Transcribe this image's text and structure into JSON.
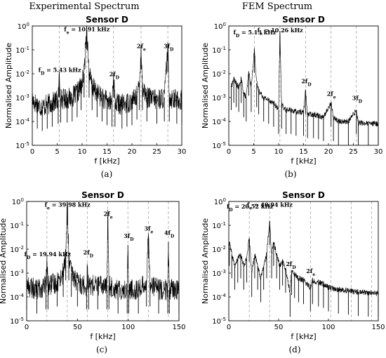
{
  "column_titles": [
    "Experimental Spectrum",
    "FEM Spectrum"
  ],
  "panel_captions": [
    "(a)",
    "(b)",
    "(c)",
    "(d)"
  ],
  "chart_data": [
    {
      "type": "line",
      "title": "Sensor D",
      "xlabel": "f [kHz]",
      "ylabel": "Normalised Amplitude",
      "xlim": [
        0,
        30
      ],
      "ylim": [
        1e-05,
        1
      ],
      "y_scale": "log",
      "x_ticks": [
        "0",
        "5",
        "10",
        "15",
        "20",
        "25",
        "30"
      ],
      "y_ticks": [
        "10-5",
        "10-4",
        "10-3",
        "10-2",
        "10-1",
        "100"
      ],
      "grid": "vertical dashed lines at marked frequencies",
      "marked_frequencies": [
        5.43,
        10.91,
        16.3,
        21.82,
        27.2
      ],
      "annotations": [
        {
          "text": "fD = 5.43 kHz",
          "x": 5.43,
          "y": 0.012
        },
        {
          "text": "fe = 10.91 kHz",
          "x": 10.91,
          "y": 0.6
        },
        {
          "text": "2fD",
          "x": 16.3,
          "y": 0.008
        },
        {
          "text": "2fe",
          "x": 21.82,
          "y": 0.12
        },
        {
          "text": "3fD",
          "x": 27.2,
          "y": 0.12
        }
      ],
      "series": [
        {
          "values": [
            [
              0.0,
              0.0008
            ],
            [
              1.0,
              0.0005
            ],
            [
              2.0,
              0.0004
            ],
            [
              3.0,
              0.0005
            ],
            [
              4.0,
              0.0006
            ],
            [
              5.2,
              0.0008
            ],
            [
              5.43,
              0.01
            ],
            [
              5.7,
              0.0009
            ],
            [
              7.0,
              0.0009
            ],
            [
              8.0,
              0.001
            ],
            [
              9.0,
              0.0015
            ],
            [
              9.8,
              0.003
            ],
            [
              10.4,
              0.01
            ],
            [
              10.91,
              1.0
            ],
            [
              11.4,
              0.01
            ],
            [
              12.0,
              0.003
            ],
            [
              13.0,
              0.0015
            ],
            [
              14.0,
              0.001
            ],
            [
              15.0,
              0.0007
            ],
            [
              16.0,
              0.0006
            ],
            [
              16.3,
              0.01
            ],
            [
              16.6,
              0.0006
            ],
            [
              18.0,
              0.0005
            ],
            [
              19.0,
              0.0006
            ],
            [
              20.0,
              0.0007
            ],
            [
              21.0,
              0.0012
            ],
            [
              21.5,
              0.003
            ],
            [
              21.82,
              0.15
            ],
            [
              22.1,
              0.003
            ],
            [
              23.0,
              0.001
            ],
            [
              25.0,
              0.0008
            ],
            [
              26.5,
              0.001
            ],
            [
              27.2,
              0.12
            ],
            [
              27.5,
              0.001
            ],
            [
              29.0,
              0.0008
            ],
            [
              30.0,
              0.0008
            ]
          ]
        }
      ]
    },
    {
      "type": "line",
      "title": "Sensor D",
      "xlabel": "f [kHz]",
      "ylabel": "Normalised Amplitude",
      "xlim": [
        0,
        30
      ],
      "ylim": [
        1e-05,
        1
      ],
      "y_scale": "log",
      "x_ticks": [
        "0",
        "5",
        "10",
        "15",
        "20",
        "25",
        "30"
      ],
      "y_ticks": [
        "10-5",
        "10-4",
        "10-3",
        "10-2",
        "10-1",
        "100"
      ],
      "grid": "vertical dashed lines at marked frequencies",
      "marked_frequencies": [
        5.13,
        10.26,
        15.4,
        20.52,
        25.6
      ],
      "annotations": [
        {
          "text": "fD = 5.13 kHz",
          "x": 5.13,
          "y": 0.45
        },
        {
          "text": "fe = 10.26 kHz",
          "x": 10.26,
          "y": 0.55
        },
        {
          "text": "2fD",
          "x": 15.4,
          "y": 0.004
        },
        {
          "text": "2fe",
          "x": 20.52,
          "y": 0.0012
        },
        {
          "text": "3fD",
          "x": 25.6,
          "y": 0.0008
        }
      ],
      "series": [
        {
          "values": [
            [
              0.5,
              0.003
            ],
            [
              1.0,
              0.006
            ],
            [
              1.5,
              0.004
            ],
            [
              2.0,
              0.0025
            ],
            [
              2.5,
              0.006
            ],
            [
              3.0,
              0.0015
            ],
            [
              3.5,
              0.001
            ],
            [
              4.0,
              0.012
            ],
            [
              4.5,
              0.0025
            ],
            [
              5.13,
              0.11
            ],
            [
              5.6,
              0.004
            ],
            [
              6.0,
              0.002
            ],
            [
              7.0,
              0.001
            ],
            [
              8.0,
              0.0008
            ],
            [
              9.0,
              0.0006
            ],
            [
              10.0,
              0.0003
            ],
            [
              10.26,
              0.6
            ],
            [
              10.6,
              0.0005
            ],
            [
              11.5,
              0.0003
            ],
            [
              12.5,
              0.0003
            ],
            [
              13.5,
              0.00025
            ],
            [
              15.0,
              0.00025
            ],
            [
              15.4,
              0.002
            ],
            [
              15.8,
              0.0002
            ],
            [
              17.0,
              0.0002
            ],
            [
              18.0,
              0.00018
            ],
            [
              19.0,
              0.00015
            ],
            [
              20.52,
              0.0006
            ],
            [
              21.0,
              0.00015
            ],
            [
              22.0,
              0.0001
            ],
            [
              24.0,
              0.0001
            ],
            [
              25.6,
              0.0003
            ],
            [
              26.0,
              9e-05
            ],
            [
              28.0,
              8e-05
            ],
            [
              30.0,
              8e-05
            ]
          ]
        }
      ]
    },
    {
      "type": "line",
      "title": "Sensor D",
      "xlabel": "f [kHz]",
      "ylabel": "Normalised Amplitude",
      "xlim": [
        0,
        150
      ],
      "ylim": [
        1e-05,
        1
      ],
      "y_scale": "log",
      "x_ticks": [
        "0",
        "50",
        "100",
        "150"
      ],
      "y_ticks": [
        "10-5",
        "10-4",
        "10-3",
        "10-2",
        "10-1",
        "100"
      ],
      "grid": "vertical dashed lines at marked frequencies",
      "marked_frequencies": [
        19.94,
        39.98,
        59.9,
        79.96,
        99.7,
        119.9,
        139.6
      ],
      "annotations": [
        {
          "text": "fD = 19.94 kHz",
          "x": 19.94,
          "y": 0.005
        },
        {
          "text": "fe = 39.98 kHz",
          "x": 39.98,
          "y": 0.6
        },
        {
          "text": "2fD",
          "x": 59.9,
          "y": 0.006
        },
        {
          "text": "2fe",
          "x": 79.96,
          "y": 0.25
        },
        {
          "text": "3fD",
          "x": 99.7,
          "y": 0.03
        },
        {
          "text": "3fe",
          "x": 119.9,
          "y": 0.06
        },
        {
          "text": "4fD",
          "x": 139.6,
          "y": 0.04
        }
      ],
      "series": [
        {
          "values": [
            [
              0.0,
              0.0003
            ],
            [
              10.0,
              0.0002
            ],
            [
              19.0,
              0.0003
            ],
            [
              19.94,
              0.003
            ],
            [
              21.0,
              0.0003
            ],
            [
              30.0,
              0.0004
            ],
            [
              36.0,
              0.001
            ],
            [
              38.5,
              0.005
            ],
            [
              39.98,
              1.0
            ],
            [
              41.5,
              0.005
            ],
            [
              44.0,
              0.001
            ],
            [
              50.0,
              0.0004
            ],
            [
              59.0,
              0.0003
            ],
            [
              59.9,
              0.002
            ],
            [
              61.0,
              0.0003
            ],
            [
              70.0,
              0.0003
            ],
            [
              79.0,
              0.0003
            ],
            [
              79.96,
              0.25
            ],
            [
              81.0,
              0.0003
            ],
            [
              90.0,
              0.0002
            ],
            [
              99.0,
              0.0002
            ],
            [
              99.7,
              0.015
            ],
            [
              100.5,
              0.0002
            ],
            [
              110.0,
              0.0002
            ],
            [
              118.0,
              0.0004
            ],
            [
              119.9,
              0.04
            ],
            [
              121.5,
              0.0004
            ],
            [
              130.0,
              0.0002
            ],
            [
              139.0,
              0.0002
            ],
            [
              139.6,
              0.02
            ],
            [
              140.5,
              0.0002
            ],
            [
              150.0,
              0.0002
            ]
          ]
        }
      ]
    },
    {
      "type": "line",
      "title": "Sensor D",
      "xlabel": "f [kHz]",
      "ylabel": "Normalised Amplitude",
      "xlim": [
        0,
        150
      ],
      "ylim": [
        1e-05,
        1
      ],
      "y_scale": "log",
      "x_ticks": [
        "0",
        "50",
        "100",
        "150"
      ],
      "y_ticks": [
        "10-5",
        "10-4",
        "10-3",
        "10-2",
        "10-1",
        "100"
      ],
      "grid": "vertical dashed lines at marked frequencies",
      "marked_frequencies": [
        20.52,
        40.94,
        61.5,
        81.9,
        102.4,
        122.8,
        143.3
      ],
      "annotations": [
        {
          "text": "fD = 20.52 kHz",
          "x": 20.52,
          "y": 0.5
        },
        {
          "text": "fe = 40.94 kHz",
          "x": 40.94,
          "y": 0.6
        },
        {
          "text": "2fD",
          "x": 61.5,
          "y": 0.002
        },
        {
          "text": "2fe",
          "x": 81.9,
          "y": 0.001
        }
      ],
      "series": [
        {
          "values": [
            [
              0.5,
              0.02
            ],
            [
              3.0,
              0.006
            ],
            [
              6.0,
              0.002
            ],
            [
              9.0,
              0.004
            ],
            [
              12.0,
              0.006
            ],
            [
              15.0,
              0.002
            ],
            [
              18.0,
              0.004
            ],
            [
              20.52,
              0.03
            ],
            [
              23.0,
              0.001
            ],
            [
              26.0,
              0.006
            ],
            [
              29.0,
              0.002
            ],
            [
              32.0,
              0.0006
            ],
            [
              35.0,
              0.002
            ],
            [
              38.0,
              0.006
            ],
            [
              40.94,
              0.15
            ],
            [
              43.0,
              0.006
            ],
            [
              45.0,
              0.02
            ],
            [
              48.0,
              0.006
            ],
            [
              51.0,
              0.002
            ],
            [
              54.0,
              0.003
            ],
            [
              57.0,
              0.0015
            ],
            [
              61.5,
              0.00015
            ],
            [
              63.0,
              0.0012
            ],
            [
              66.0,
              0.0009
            ],
            [
              70.0,
              0.0006
            ],
            [
              75.0,
              0.0005
            ],
            [
              81.9,
              0.00025
            ],
            [
              84.0,
              0.0005
            ],
            [
              90.0,
              0.0004
            ],
            [
              95.0,
              0.00035
            ],
            [
              100.0,
              0.00025
            ],
            [
              110.0,
              0.0002
            ],
            [
              120.0,
              0.00018
            ],
            [
              130.0,
              0.00016
            ],
            [
              140.0,
              0.00015
            ],
            [
              150.0,
              0.00014
            ]
          ]
        }
      ]
    }
  ]
}
